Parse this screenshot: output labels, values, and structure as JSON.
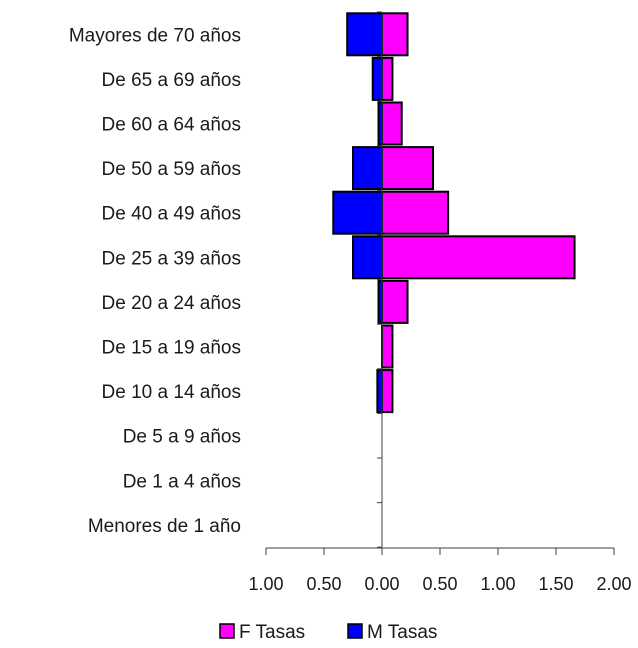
{
  "chart_data": {
    "type": "bar",
    "orientation": "horizontal",
    "layout": "population-pyramid",
    "categories": [
      "Mayores de 70 años",
      "De 65 a 69 años",
      "De 60 a 64 años",
      "De 50 a 59 años",
      "De 40 a 49 años",
      "De 25 a 39 años",
      "De 20 a 24 años",
      "De 15 a 19 años",
      "De 10 a 14 años",
      "De 5 a 9 años",
      "De 1 a 4 años",
      "Menores de 1 año"
    ],
    "series": [
      {
        "name": "F Tasas",
        "color": "#ff00ff",
        "values": [
          0.22,
          0.09,
          0.17,
          0.44,
          0.57,
          1.66,
          0.22,
          0.09,
          0.09,
          0,
          0,
          0
        ]
      },
      {
        "name": "M Tasas",
        "color": "#0000ff",
        "values": [
          0.3,
          0.08,
          0.03,
          0.25,
          0.42,
          0.25,
          0.03,
          0,
          0.04,
          0,
          0,
          0
        ]
      }
    ],
    "xlim": [
      -1,
      2
    ],
    "tick_labels": [
      "1.00",
      "0.50",
      "0.00",
      "0.50",
      "1.00",
      "1.50",
      "2.00"
    ],
    "legend": {
      "position": "bottom",
      "entries": [
        "F Tasas",
        "M Tasas"
      ]
    },
    "grid": false
  }
}
